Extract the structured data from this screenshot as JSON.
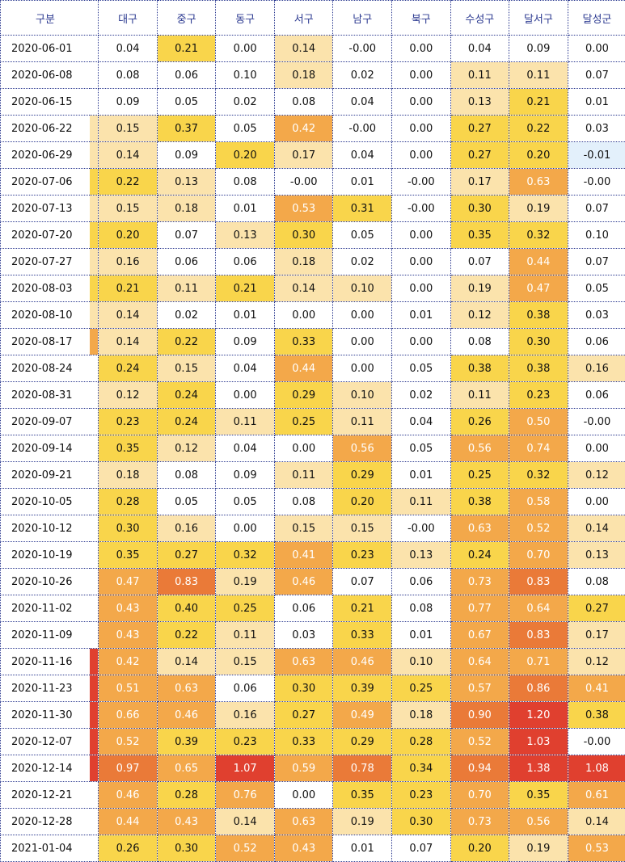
{
  "columns": [
    "구분",
    "대구",
    "중구",
    "동구",
    "서구",
    "남구",
    "북구",
    "수성구",
    "달서구",
    "달성군"
  ],
  "colors": {
    "white": "#ffffff",
    "pale": "#fbe3ac",
    "yellow": "#f9d54b",
    "orange": "#f3a84a",
    "deep_orange": "#ea7a38",
    "red": "#e0402f",
    "pale_blue": "#e3f0fb",
    "header_text": "#2b3990"
  },
  "rows": [
    {
      "date": "2020-06-01",
      "gap": "white",
      "values": [
        "0.04",
        "0.21",
        "0.00",
        "0.14",
        "-0.00",
        "0.00",
        "0.04",
        "0.09",
        "0.00"
      ],
      "bg": [
        "white",
        "yellow",
        "white",
        "pale",
        "white",
        "white",
        "white",
        "white",
        "white"
      ]
    },
    {
      "date": "2020-06-08",
      "gap": "white",
      "values": [
        "0.08",
        "0.06",
        "0.10",
        "0.18",
        "0.02",
        "0.00",
        "0.11",
        "0.11",
        "0.07"
      ],
      "bg": [
        "white",
        "white",
        "white",
        "pale",
        "white",
        "white",
        "pale",
        "pale",
        "white"
      ]
    },
    {
      "date": "2020-06-15",
      "gap": "white",
      "values": [
        "0.09",
        "0.05",
        "0.02",
        "0.08",
        "0.04",
        "0.00",
        "0.13",
        "0.21",
        "0.01"
      ],
      "bg": [
        "white",
        "white",
        "white",
        "white",
        "white",
        "white",
        "pale",
        "yellow",
        "white"
      ]
    },
    {
      "date": "2020-06-22",
      "gap": "pale",
      "values": [
        "0.15",
        "0.37",
        "0.05",
        "0.42",
        "-0.00",
        "0.00",
        "0.27",
        "0.22",
        "0.03"
      ],
      "bg": [
        "pale",
        "yellow",
        "white",
        "orange",
        "white",
        "white",
        "yellow",
        "yellow",
        "white"
      ]
    },
    {
      "date": "2020-06-29",
      "gap": "pale",
      "values": [
        "0.14",
        "0.09",
        "0.20",
        "0.17",
        "0.04",
        "0.00",
        "0.27",
        "0.20",
        "-0.01"
      ],
      "bg": [
        "pale",
        "white",
        "yellow",
        "pale",
        "white",
        "white",
        "yellow",
        "yellow",
        "pale_blue"
      ]
    },
    {
      "date": "2020-07-06",
      "gap": "yellow",
      "values": [
        "0.22",
        "0.13",
        "0.08",
        "-0.00",
        "0.01",
        "-0.00",
        "0.17",
        "0.63",
        "-0.00"
      ],
      "bg": [
        "yellow",
        "pale",
        "white",
        "white",
        "white",
        "white",
        "pale",
        "orange",
        "white"
      ]
    },
    {
      "date": "2020-07-13",
      "gap": "pale",
      "values": [
        "0.15",
        "0.18",
        "0.01",
        "0.53",
        "0.31",
        "-0.00",
        "0.30",
        "0.19",
        "0.07"
      ],
      "bg": [
        "pale",
        "pale",
        "white",
        "orange",
        "yellow",
        "white",
        "yellow",
        "pale",
        "white"
      ]
    },
    {
      "date": "2020-07-20",
      "gap": "yellow",
      "values": [
        "0.20",
        "0.07",
        "0.13",
        "0.30",
        "0.05",
        "0.00",
        "0.35",
        "0.32",
        "0.10"
      ],
      "bg": [
        "yellow",
        "white",
        "pale",
        "yellow",
        "white",
        "white",
        "yellow",
        "yellow",
        "white"
      ]
    },
    {
      "date": "2020-07-27",
      "gap": "pale",
      "values": [
        "0.16",
        "0.06",
        "0.06",
        "0.18",
        "0.02",
        "0.00",
        "0.07",
        "0.44",
        "0.07"
      ],
      "bg": [
        "pale",
        "white",
        "white",
        "pale",
        "white",
        "white",
        "white",
        "orange",
        "white"
      ]
    },
    {
      "date": "2020-08-03",
      "gap": "yellow",
      "values": [
        "0.21",
        "0.11",
        "0.21",
        "0.14",
        "0.10",
        "0.00",
        "0.19",
        "0.47",
        "0.05"
      ],
      "bg": [
        "yellow",
        "pale",
        "yellow",
        "pale",
        "pale",
        "white",
        "pale",
        "orange",
        "white"
      ]
    },
    {
      "date": "2020-08-10",
      "gap": "pale",
      "values": [
        "0.14",
        "0.02",
        "0.01",
        "0.00",
        "0.00",
        "0.01",
        "0.12",
        "0.38",
        "0.03"
      ],
      "bg": [
        "pale",
        "white",
        "white",
        "white",
        "white",
        "white",
        "pale",
        "yellow",
        "white"
      ]
    },
    {
      "date": "2020-08-17",
      "gap": "orange",
      "values": [
        "0.14",
        "0.22",
        "0.09",
        "0.33",
        "0.00",
        "0.00",
        "0.08",
        "0.30",
        "0.06"
      ],
      "bg": [
        "pale",
        "yellow",
        "white",
        "yellow",
        "white",
        "white",
        "white",
        "yellow",
        "white"
      ]
    },
    {
      "date": "2020-08-24",
      "gap": "white",
      "values": [
        "0.24",
        "0.15",
        "0.04",
        "0.44",
        "0.00",
        "0.05",
        "0.38",
        "0.38",
        "0.16"
      ],
      "bg": [
        "yellow",
        "pale",
        "white",
        "orange",
        "white",
        "white",
        "yellow",
        "yellow",
        "pale"
      ]
    },
    {
      "date": "2020-08-31",
      "gap": "white",
      "values": [
        "0.12",
        "0.24",
        "0.00",
        "0.29",
        "0.10",
        "0.02",
        "0.11",
        "0.23",
        "0.06"
      ],
      "bg": [
        "pale",
        "yellow",
        "white",
        "yellow",
        "pale",
        "white",
        "pale",
        "yellow",
        "white"
      ]
    },
    {
      "date": "2020-09-07",
      "gap": "white",
      "values": [
        "0.23",
        "0.24",
        "0.11",
        "0.25",
        "0.11",
        "0.04",
        "0.26",
        "0.50",
        "-0.00"
      ],
      "bg": [
        "yellow",
        "yellow",
        "pale",
        "yellow",
        "pale",
        "white",
        "yellow",
        "orange",
        "white"
      ]
    },
    {
      "date": "2020-09-14",
      "gap": "white",
      "values": [
        "0.35",
        "0.12",
        "0.04",
        "0.00",
        "0.56",
        "0.05",
        "0.56",
        "0.74",
        "0.00"
      ],
      "bg": [
        "yellow",
        "pale",
        "white",
        "white",
        "orange",
        "white",
        "orange",
        "orange",
        "white"
      ]
    },
    {
      "date": "2020-09-21",
      "gap": "white",
      "values": [
        "0.18",
        "0.08",
        "0.09",
        "0.11",
        "0.29",
        "0.01",
        "0.25",
        "0.32",
        "0.12"
      ],
      "bg": [
        "pale",
        "white",
        "white",
        "pale",
        "yellow",
        "white",
        "yellow",
        "yellow",
        "pale"
      ]
    },
    {
      "date": "2020-10-05",
      "gap": "white",
      "values": [
        "0.28",
        "0.05",
        "0.05",
        "0.08",
        "0.20",
        "0.11",
        "0.38",
        "0.58",
        "0.00"
      ],
      "bg": [
        "yellow",
        "white",
        "white",
        "white",
        "yellow",
        "pale",
        "yellow",
        "orange",
        "white"
      ]
    },
    {
      "date": "2020-10-12",
      "gap": "white",
      "values": [
        "0.30",
        "0.16",
        "0.00",
        "0.15",
        "0.15",
        "-0.00",
        "0.63",
        "0.52",
        "0.14"
      ],
      "bg": [
        "yellow",
        "pale",
        "white",
        "pale",
        "pale",
        "white",
        "orange",
        "orange",
        "pale"
      ]
    },
    {
      "date": "2020-10-19",
      "gap": "white",
      "values": [
        "0.35",
        "0.27",
        "0.32",
        "0.41",
        "0.23",
        "0.13",
        "0.24",
        "0.70",
        "0.13"
      ],
      "bg": [
        "yellow",
        "yellow",
        "yellow",
        "orange",
        "yellow",
        "pale",
        "yellow",
        "orange",
        "pale"
      ]
    },
    {
      "date": "2020-10-26",
      "gap": "white",
      "values": [
        "0.47",
        "0.83",
        "0.19",
        "0.46",
        "0.07",
        "0.06",
        "0.73",
        "0.83",
        "0.08"
      ],
      "bg": [
        "orange",
        "deep_orange",
        "pale",
        "orange",
        "white",
        "white",
        "orange",
        "deep_orange",
        "white"
      ]
    },
    {
      "date": "2020-11-02",
      "gap": "white",
      "values": [
        "0.43",
        "0.40",
        "0.25",
        "0.06",
        "0.21",
        "0.08",
        "0.77",
        "0.64",
        "0.27"
      ],
      "bg": [
        "orange",
        "yellow",
        "yellow",
        "white",
        "yellow",
        "white",
        "orange",
        "orange",
        "yellow"
      ]
    },
    {
      "date": "2020-11-09",
      "gap": "white",
      "values": [
        "0.43",
        "0.22",
        "0.11",
        "0.03",
        "0.33",
        "0.01",
        "0.67",
        "0.83",
        "0.17"
      ],
      "bg": [
        "orange",
        "yellow",
        "pale",
        "white",
        "yellow",
        "white",
        "orange",
        "deep_orange",
        "pale"
      ]
    },
    {
      "date": "2020-11-16",
      "gap": "red",
      "values": [
        "0.42",
        "0.14",
        "0.15",
        "0.63",
        "0.46",
        "0.10",
        "0.64",
        "0.71",
        "0.12"
      ],
      "bg": [
        "orange",
        "pale",
        "pale",
        "orange",
        "orange",
        "pale",
        "orange",
        "orange",
        "pale"
      ]
    },
    {
      "date": "2020-11-23",
      "gap": "red",
      "values": [
        "0.51",
        "0.63",
        "0.06",
        "0.30",
        "0.39",
        "0.25",
        "0.57",
        "0.86",
        "0.41"
      ],
      "bg": [
        "orange",
        "orange",
        "white",
        "yellow",
        "yellow",
        "yellow",
        "orange",
        "deep_orange",
        "orange"
      ]
    },
    {
      "date": "2020-11-30",
      "gap": "red",
      "values": [
        "0.66",
        "0.46",
        "0.16",
        "0.27",
        "0.49",
        "0.18",
        "0.90",
        "1.20",
        "0.38"
      ],
      "bg": [
        "orange",
        "orange",
        "pale",
        "yellow",
        "orange",
        "pale",
        "deep_orange",
        "red",
        "yellow"
      ]
    },
    {
      "date": "2020-12-07",
      "gap": "red",
      "values": [
        "0.52",
        "0.39",
        "0.23",
        "0.33",
        "0.29",
        "0.28",
        "0.52",
        "1.03",
        "-0.00"
      ],
      "bg": [
        "orange",
        "yellow",
        "yellow",
        "yellow",
        "yellow",
        "yellow",
        "orange",
        "red",
        "white"
      ]
    },
    {
      "date": "2020-12-14",
      "gap": "red",
      "values": [
        "0.97",
        "0.65",
        "1.07",
        "0.59",
        "0.78",
        "0.34",
        "0.94",
        "1.38",
        "1.08"
      ],
      "bg": [
        "deep_orange",
        "orange",
        "red",
        "orange",
        "deep_orange",
        "yellow",
        "deep_orange",
        "red",
        "red"
      ]
    },
    {
      "date": "2020-12-21",
      "gap": "white",
      "values": [
        "0.46",
        "0.28",
        "0.76",
        "0.00",
        "0.35",
        "0.23",
        "0.70",
        "0.35",
        "0.61"
      ],
      "bg": [
        "orange",
        "yellow",
        "orange",
        "white",
        "yellow",
        "yellow",
        "orange",
        "yellow",
        "orange"
      ]
    },
    {
      "date": "2020-12-28",
      "gap": "white",
      "values": [
        "0.44",
        "0.43",
        "0.14",
        "0.63",
        "0.19",
        "0.30",
        "0.73",
        "0.56",
        "0.14"
      ],
      "bg": [
        "orange",
        "orange",
        "pale",
        "orange",
        "pale",
        "yellow",
        "orange",
        "orange",
        "pale"
      ]
    },
    {
      "date": "2021-01-04",
      "gap": "white",
      "values": [
        "0.26",
        "0.30",
        "0.52",
        "0.43",
        "0.01",
        "0.07",
        "0.20",
        "0.19",
        "0.53"
      ],
      "bg": [
        "yellow",
        "yellow",
        "orange",
        "orange",
        "white",
        "white",
        "yellow",
        "pale",
        "orange"
      ]
    }
  ]
}
